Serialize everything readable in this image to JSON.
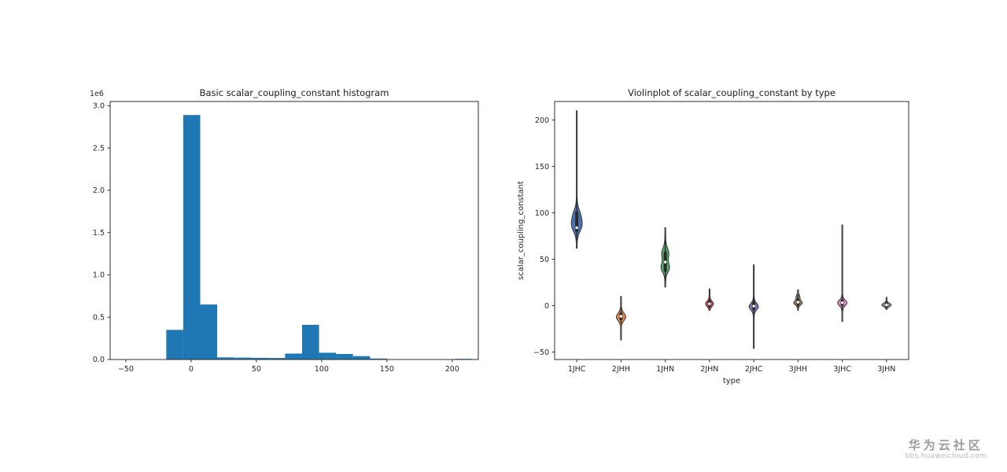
{
  "figure": {
    "background": "#ffffff"
  },
  "watermark": {
    "line1": "华为云社区",
    "line2": "bbs.huaweicloud.com"
  },
  "chart_data": [
    {
      "type": "bar",
      "subtype": "histogram",
      "title": "Basic scalar_coupling_constant histogram",
      "xlabel": "",
      "ylabel": "",
      "offset_label": "1e6",
      "bar_color": "#1f77b4",
      "xlim": [
        -62,
        220
      ],
      "ylim": [
        0,
        3050000
      ],
      "xtick_values": [
        -50,
        0,
        50,
        100,
        150,
        200
      ],
      "xtick_labels": [
        "−50",
        "0",
        "50",
        "100",
        "150",
        "200"
      ],
      "ytick_values": [
        0,
        500000,
        1000000,
        1500000,
        2000000,
        2500000,
        3000000
      ],
      "ytick_labels": [
        "0.0",
        "0.5",
        "1.0",
        "1.5",
        "2.0",
        "2.5",
        "3.0"
      ],
      "bin_edges": [
        -45,
        -32,
        -19,
        -6,
        7,
        20,
        33,
        46,
        59,
        72,
        85,
        98,
        111,
        124,
        137,
        150,
        163,
        176,
        189,
        202,
        215
      ],
      "counts": [
        0,
        0,
        350000,
        2890000,
        650000,
        25000,
        22000,
        20000,
        18000,
        70000,
        410000,
        80000,
        65000,
        40000,
        12000,
        0,
        0,
        0,
        0,
        8000
      ]
    },
    {
      "type": "violin",
      "title": "Violinplot of scalar_coupling_constant by type",
      "xlabel": "type",
      "ylabel": "scalar_coupling_constant",
      "ylim": [
        -58,
        220
      ],
      "ytick_values": [
        -50,
        0,
        50,
        100,
        150,
        200
      ],
      "ytick_labels": [
        "−50",
        "0",
        "50",
        "100",
        "150",
        "200"
      ],
      "categories": [
        "1JHC",
        "2JHH",
        "1JHN",
        "2JHN",
        "2JHC",
        "3JHH",
        "3JHC",
        "3JHN"
      ],
      "violins": [
        {
          "label": "1JHC",
          "min": 62,
          "max": 210,
          "kde": [
            {
              "c": 87,
              "s": 7,
              "w": 1
            },
            {
              "c": 99,
              "s": 6,
              "w": 0.5
            }
          ],
          "q1": 81,
          "q3": 100,
          "whisker_lo": 70,
          "whisker_hi": 117,
          "median": 84,
          "maxw": 7,
          "color": "#4C72B0"
        },
        {
          "label": "2JHH",
          "min": -37,
          "max": 10,
          "kde": [
            {
              "c": -12,
              "s": 4,
              "w": 1
            }
          ],
          "q1": -14,
          "q3": -9,
          "whisker_lo": -20,
          "whisker_hi": -2,
          "median": -11.5,
          "maxw": 6,
          "color": "#DD8452"
        },
        {
          "label": "1JHN",
          "min": 20,
          "max": 84,
          "kde": [
            {
              "c": 41,
              "s": 5,
              "w": 1
            },
            {
              "c": 56,
              "s": 6,
              "w": 0.85
            }
          ],
          "q1": 38,
          "q3": 57,
          "whisker_lo": 24,
          "whisker_hi": 78,
          "median": 47,
          "maxw": 5.5,
          "color": "#55A868"
        },
        {
          "label": "2JHN",
          "min": -5,
          "max": 18,
          "kde": [
            {
              "c": 2,
              "s": 2.8,
              "w": 1
            }
          ],
          "q1": 0.5,
          "q3": 4,
          "whisker_lo": -3,
          "whisker_hi": 9,
          "median": 2,
          "maxw": 5,
          "color": "#C44E52"
        },
        {
          "label": "2JHC",
          "min": -46,
          "max": 44,
          "kde": [
            {
              "c": -1,
              "s": 3.5,
              "w": 1
            }
          ],
          "q1": -3.5,
          "q3": 3,
          "whisker_lo": -12,
          "whisker_hi": 11,
          "median": -0.5,
          "maxw": 6,
          "color": "#8172B3"
        },
        {
          "label": "3JHH",
          "min": -5,
          "max": 17,
          "kde": [
            {
              "c": 3,
              "s": 2.2,
              "w": 1
            },
            {
              "c": 9,
              "s": 2.5,
              "w": 0.4
            }
          ],
          "q1": 2,
          "q3": 6,
          "whisker_lo": -2,
          "whisker_hi": 12,
          "median": 3.8,
          "maxw": 5.5,
          "color": "#937860"
        },
        {
          "label": "3JHC",
          "min": -17,
          "max": 87,
          "kde": [
            {
              "c": 3,
              "s": 3,
              "w": 1
            }
          ],
          "q1": 1,
          "q3": 5.5,
          "whisker_lo": -6,
          "whisker_hi": 12,
          "median": 3.2,
          "maxw": 6,
          "color": "#DA8BC3"
        },
        {
          "label": "3JHN",
          "min": -4,
          "max": 9,
          "kde": [
            {
              "c": 0.8,
              "s": 1.8,
              "w": 1
            }
          ],
          "q1": 0,
          "q3": 2,
          "whisker_lo": -3,
          "whisker_hi": 5,
          "median": 0.8,
          "maxw": 6,
          "color": "#8C8C8C"
        }
      ]
    }
  ]
}
